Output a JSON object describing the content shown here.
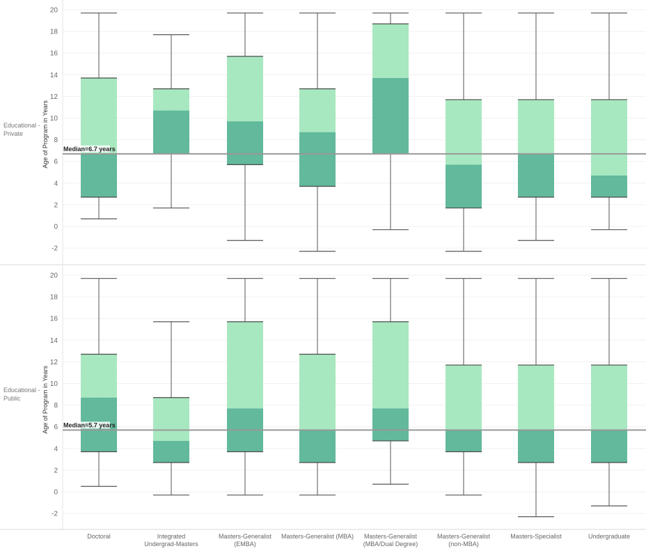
{
  "chart_data": {
    "type": "box",
    "y_axis_label": "Age of Program in Years",
    "ylim": [
      -3,
      20
    ],
    "y_ticks": [
      -2,
      0,
      2,
      4,
      6,
      8,
      10,
      12,
      14,
      16,
      18,
      20
    ],
    "categories": [
      [
        "Doctoral"
      ],
      [
        "Integrated",
        "Undergrad-Masters"
      ],
      [
        "Masters-Generalist",
        "(EMBA)"
      ],
      [
        "Masters-Generalist (MBA)"
      ],
      [
        "Masters-Generalist",
        "(MBA/Dual Degree)"
      ],
      [
        "Masters-Generalist",
        "(non-MBA)"
      ],
      [
        "Masters-Specialist"
      ],
      [
        "Undergraduate"
      ]
    ],
    "colors": {
      "lower_box": "#62b99b",
      "upper_box": "#a8e8c0",
      "whisker": "#555555",
      "reference_line": "#999999"
    },
    "panels": [
      {
        "row_label": [
          "Educational -",
          "Private"
        ],
        "reference_label": "Median=6.7 years",
        "reference_value": 6.7,
        "boxes": [
          {
            "low": 0.7,
            "q1": 2.7,
            "median": 6.7,
            "q3": 13.7,
            "high": 19.7
          },
          {
            "low": 1.7,
            "q1": 6.7,
            "median": 10.7,
            "q3": 12.7,
            "high": 17.7
          },
          {
            "low": -1.3,
            "q1": 5.7,
            "median": 9.7,
            "q3": 15.7,
            "high": 19.7
          },
          {
            "low": -2.3,
            "q1": 3.7,
            "median": 8.7,
            "q3": 12.7,
            "high": 19.7
          },
          {
            "low": -0.3,
            "q1": 6.7,
            "median": 13.7,
            "q3": 18.7,
            "high": 19.7
          },
          {
            "low": -2.3,
            "q1": 1.7,
            "median": 5.7,
            "q3": 11.7,
            "high": 19.7
          },
          {
            "low": -1.3,
            "q1": 2.7,
            "median": 6.7,
            "q3": 11.7,
            "high": 19.7
          },
          {
            "low": -0.3,
            "q1": 2.7,
            "median": 4.7,
            "q3": 11.7,
            "high": 19.7
          }
        ]
      },
      {
        "row_label": [
          "Educational -",
          "Public"
        ],
        "reference_label": "Median=5.7 years",
        "reference_value": 5.7,
        "boxes": [
          {
            "low": 0.5,
            "q1": 3.7,
            "median": 8.7,
            "q3": 12.7,
            "high": 19.7
          },
          {
            "low": -0.3,
            "q1": 2.7,
            "median": 4.7,
            "q3": 8.7,
            "high": 15.7
          },
          {
            "low": -0.3,
            "q1": 3.7,
            "median": 7.7,
            "q3": 15.7,
            "high": 19.7
          },
          {
            "low": -0.3,
            "q1": 2.7,
            "median": 5.7,
            "q3": 12.7,
            "high": 19.7
          },
          {
            "low": 0.7,
            "q1": 4.7,
            "median": 7.7,
            "q3": 15.7,
            "high": 19.7
          },
          {
            "low": -0.3,
            "q1": 3.7,
            "median": 5.7,
            "q3": 11.7,
            "high": 19.7
          },
          {
            "low": -2.3,
            "q1": 2.7,
            "median": 5.7,
            "q3": 11.7,
            "high": 19.7
          },
          {
            "low": -1.3,
            "q1": 2.7,
            "median": 5.7,
            "q3": 11.7,
            "high": 19.7
          }
        ]
      }
    ]
  }
}
